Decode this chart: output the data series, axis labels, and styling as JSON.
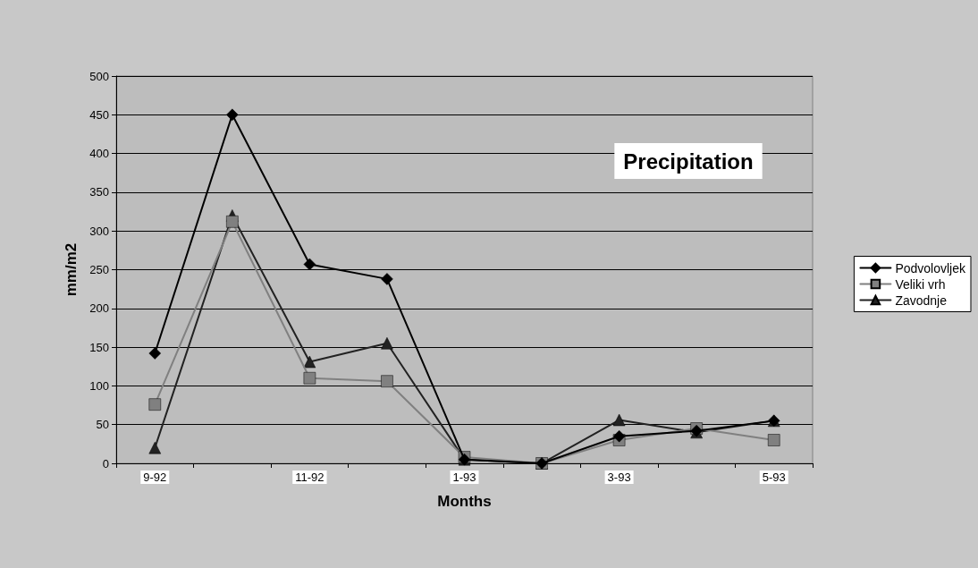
{
  "chart_data": {
    "type": "line",
    "title": "Precipitation",
    "xlabel": "Months",
    "ylabel": "mm/m2",
    "categories": [
      "9-92",
      null,
      "11-92",
      null,
      "1-93",
      null,
      "3-93",
      null,
      "5-93"
    ],
    "series": [
      {
        "name": "Podvolovljek",
        "color": "#000000",
        "marker": "diamond",
        "values": [
          142,
          450,
          257,
          238,
          5,
          0,
          35,
          42,
          55
        ]
      },
      {
        "name": "Veliki vrh",
        "color": "#808080",
        "marker": "square",
        "values": [
          76,
          312,
          110,
          106,
          8,
          0,
          30,
          45,
          30
        ]
      },
      {
        "name": "Zavodnje",
        "color": "#222222",
        "marker": "triangle",
        "values": [
          20,
          320,
          131,
          155,
          5,
          0,
          56,
          40,
          55
        ]
      }
    ],
    "ylim": [
      0,
      500
    ],
    "yticks": [
      0,
      50,
      100,
      150,
      200,
      250,
      300,
      350,
      400,
      450,
      500
    ],
    "grid": "y",
    "legend": "right",
    "line_style": "solid"
  }
}
